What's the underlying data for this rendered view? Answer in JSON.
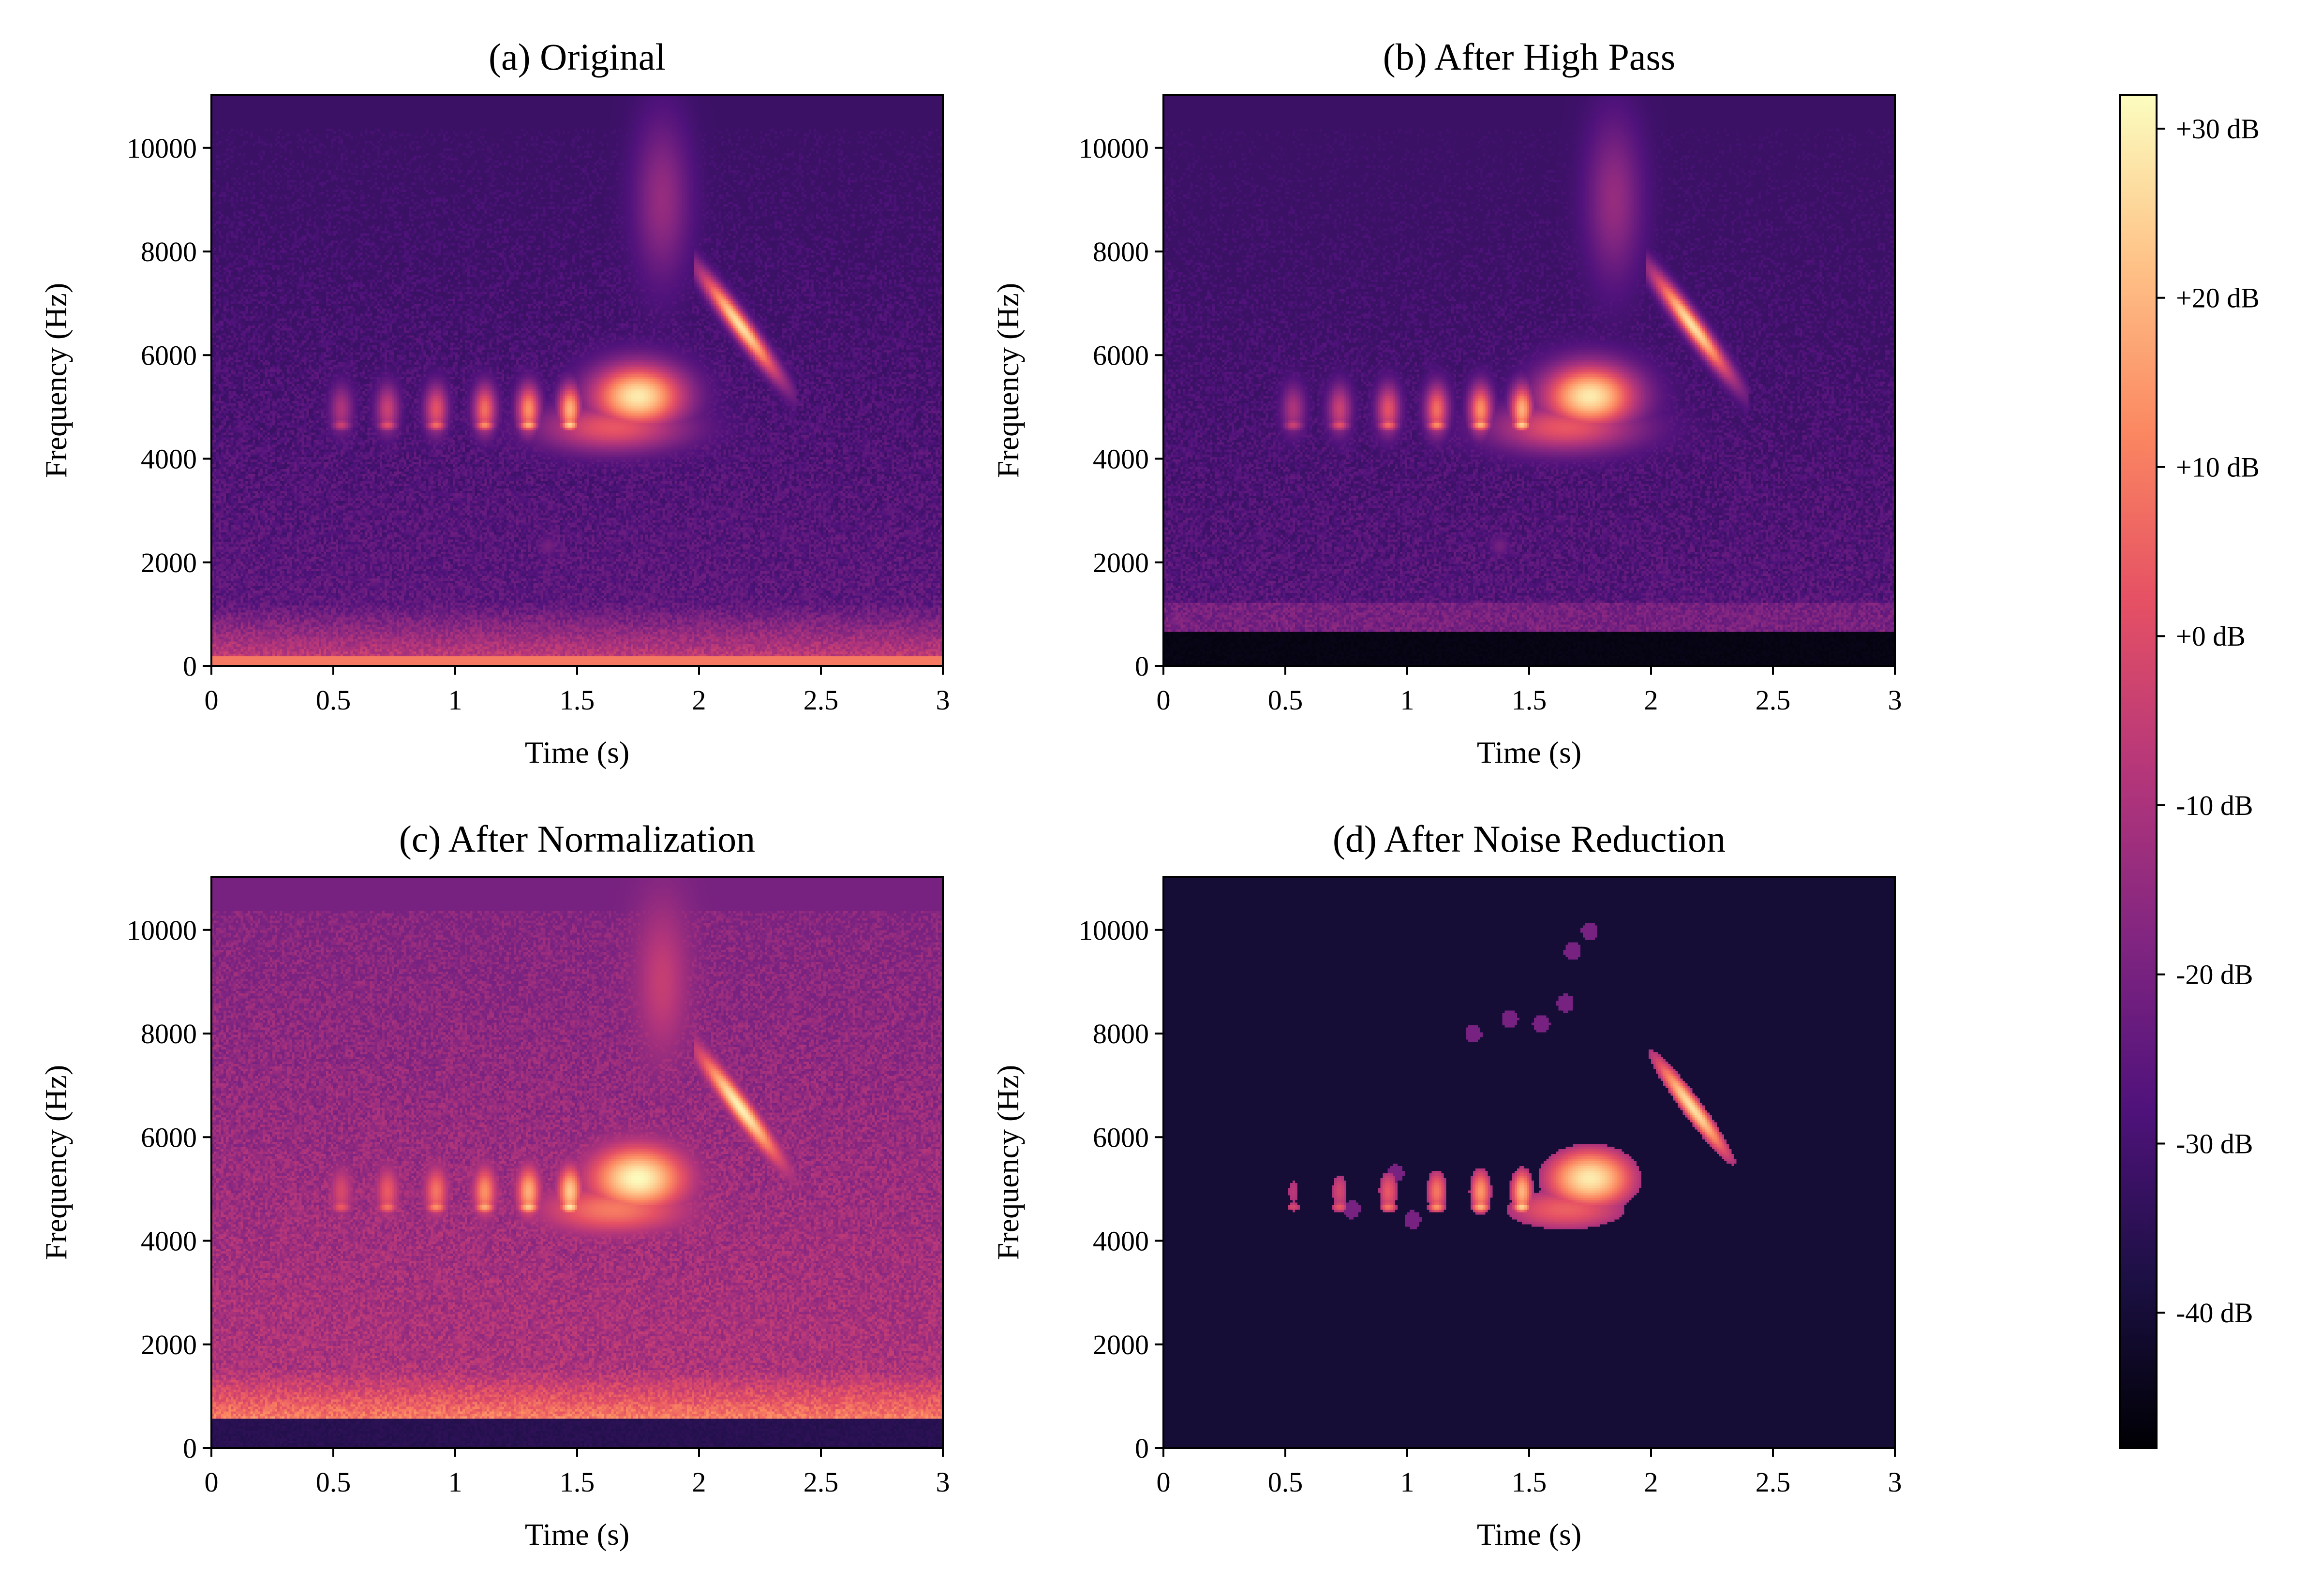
{
  "chart_data": [
    {
      "type": "heatmap",
      "title": "(a) Original",
      "xlabel": "Time (s)",
      "ylabel": "Frequency (Hz)",
      "xlim": [
        0,
        3
      ],
      "ylim": [
        0,
        11025
      ],
      "xticks": [
        "0",
        "0.5",
        "1",
        "1.5",
        "2",
        "2.5",
        "3"
      ],
      "yticks": [
        "0",
        "2000",
        "4000",
        "6000",
        "8000",
        "10000"
      ],
      "variant": "original"
    },
    {
      "type": "heatmap",
      "title": "(b) After High Pass",
      "xlabel": "Time (s)",
      "ylabel": "Frequency (Hz)",
      "xlim": [
        0,
        3
      ],
      "ylim": [
        0,
        11025
      ],
      "xticks": [
        "0",
        "0.5",
        "1",
        "1.5",
        "2",
        "2.5",
        "3"
      ],
      "yticks": [
        "0",
        "2000",
        "4000",
        "6000",
        "8000",
        "10000"
      ],
      "variant": "highpass"
    },
    {
      "type": "heatmap",
      "title": "(c) After Normalization",
      "xlabel": "Time (s)",
      "ylabel": "Frequency (Hz)",
      "xlim": [
        0,
        3
      ],
      "ylim": [
        0,
        11025
      ],
      "xticks": [
        "0",
        "0.5",
        "1",
        "1.5",
        "2",
        "2.5",
        "3"
      ],
      "yticks": [
        "0",
        "2000",
        "4000",
        "6000",
        "8000",
        "10000"
      ],
      "variant": "normalized"
    },
    {
      "type": "heatmap",
      "title": "(d) After Noise Reduction",
      "xlabel": "Time (s)",
      "ylabel": "Frequency (Hz)",
      "xlim": [
        0,
        3
      ],
      "ylim": [
        0,
        11025
      ],
      "xticks": [
        "0",
        "0.5",
        "1",
        "1.5",
        "2",
        "2.5",
        "3"
      ],
      "yticks": [
        "0",
        "2000",
        "4000",
        "6000",
        "8000",
        "10000"
      ],
      "variant": "denoised"
    }
  ],
  "colorbar": {
    "colormap": "magma",
    "range_db": [
      -48,
      32
    ],
    "ticks": [
      {
        "value": 30,
        "label": "+30 dB"
      },
      {
        "value": 20,
        "label": "+20 dB"
      },
      {
        "value": 10,
        "label": "+10 dB"
      },
      {
        "value": 0,
        "label": "+0 dB"
      },
      {
        "value": -10,
        "label": "-10 dB"
      },
      {
        "value": -20,
        "label": "-20 dB"
      },
      {
        "value": -30,
        "label": "-30 dB"
      },
      {
        "value": -40,
        "label": "-40 dB"
      }
    ]
  },
  "colors": {
    "magma_stops": [
      "#000004",
      "#1c1044",
      "#4f127b",
      "#812581",
      "#b5367a",
      "#e55064",
      "#fb8761",
      "#fec287",
      "#fcfdbf"
    ]
  }
}
